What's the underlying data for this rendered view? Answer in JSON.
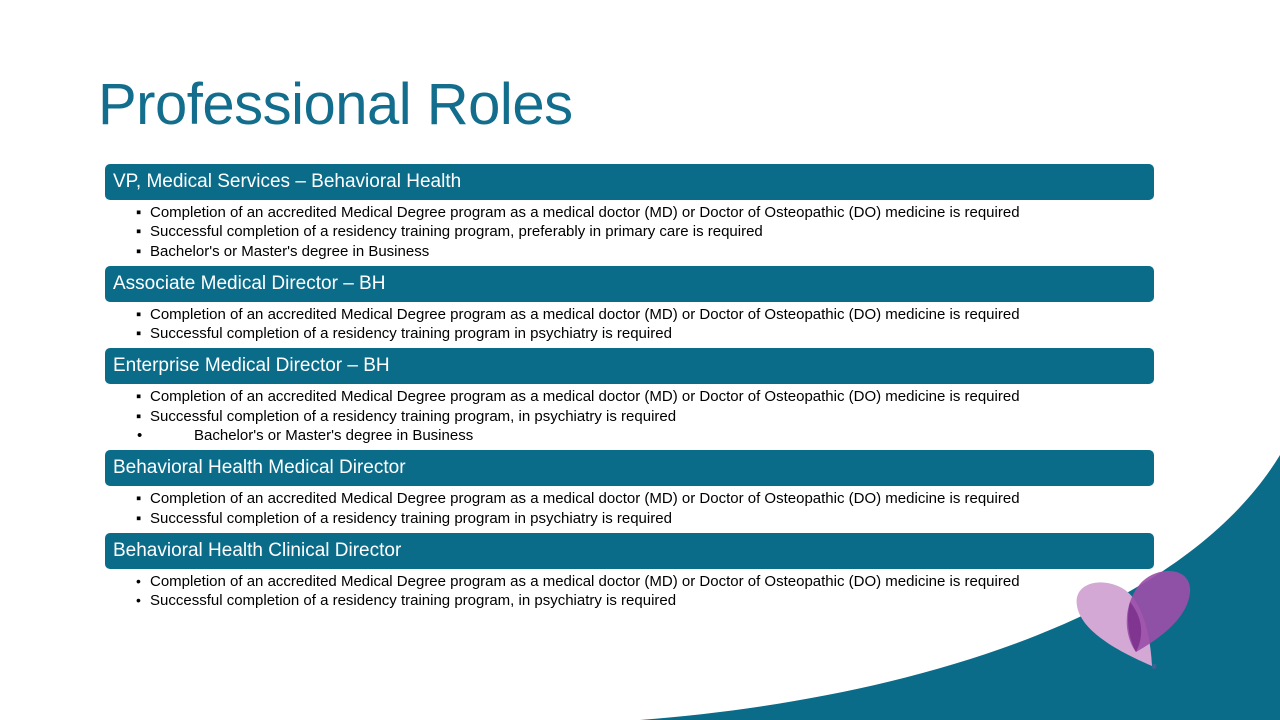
{
  "title": "Professional Roles",
  "colors": {
    "title": "#126e8c",
    "header_bg": "#0b6c8a",
    "wave": "#0b6c8a",
    "logo_light": "#d3a8d4",
    "logo_dark": "#9a4fa8"
  },
  "roles": [
    {
      "title": "VP, Medical Services – Behavioral Health",
      "bullet": "square",
      "items": [
        "Completion of an accredited Medical Degree program as a medical doctor (MD) or Doctor of Osteopathic (DO) medicine is required",
        "Successful completion of a residency training program, preferably in primary care is required",
        "Bachelor's or Master's degree in Business"
      ]
    },
    {
      "title": "Associate Medical Director – BH",
      "bullet": "square",
      "items": [
        "Completion of an accredited Medical Degree program as a medical doctor (MD) or Doctor of Osteopathic (DO) medicine is required",
        "Successful completion of a residency training program in psychiatry is required"
      ]
    },
    {
      "title": "Enterprise Medical Director – BH",
      "bullet": "square",
      "items": [
        "Completion of an accredited Medical Degree program as a medical doctor (MD) or Doctor of Osteopathic (DO) medicine is required",
        "Successful completion of a residency training program, in psychiatry is required",
        "Bachelor's or Master's degree in Business"
      ]
    },
    {
      "title": "Behavioral Health Medical Director",
      "bullet": "square",
      "items": [
        "Completion of an accredited Medical Degree program as a medical doctor (MD) or Doctor of Osteopathic (DO) medicine is required",
        "Successful completion of a residency training program in psychiatry is required"
      ]
    },
    {
      "title": "Behavioral Health Clinical Director",
      "bullet": "dot",
      "items": [
        "Completion of an accredited Medical Degree program as a medical doctor (MD) or Doctor of Osteopathic (DO) medicine is required",
        "Successful completion of a residency training program, in psychiatry is required"
      ]
    }
  ]
}
